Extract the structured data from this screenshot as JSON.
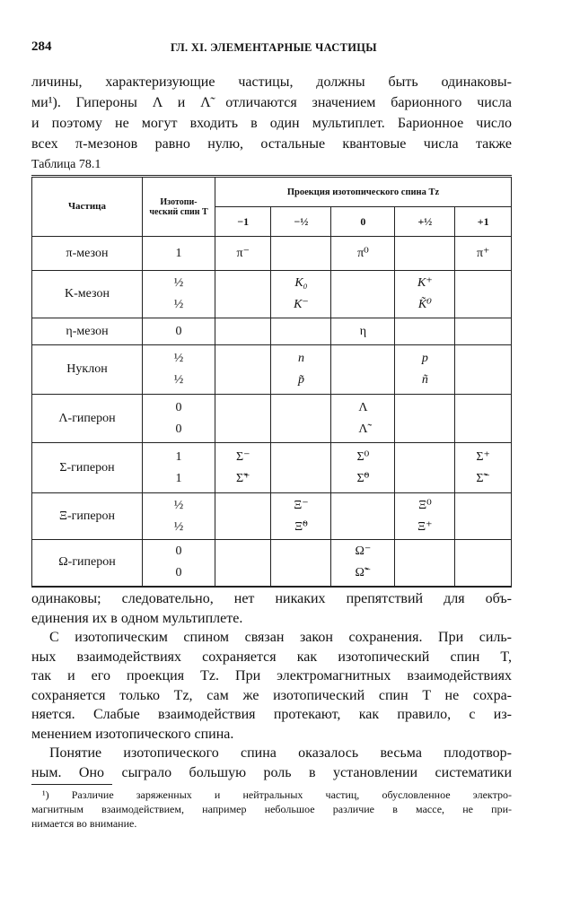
{
  "header": {
    "page_number": "284",
    "running_title": "ГЛ. XI. ЭЛЕМЕНТАРНЫЕ ЧАСТИЦЫ"
  },
  "intro_lines": [
    "личины, характеризующие частицы, должны быть одинаковы-",
    "ми¹). Гипероны Λ и Λ̃ отличаются значением барионного числа",
    "и поэтому не могут входить в один мультиплет. Барионное число",
    "всех π-мезонов равно нулю, остальные квантовые числа также"
  ],
  "table": {
    "caption": "Таблица 78.1",
    "col_particle": "Частица",
    "col_spin": "Изотопи- ческий спин T",
    "col_projection": "Проекция изотопического спина T_z",
    "projections": [
      "−1",
      "−½",
      "0",
      "+½",
      "+1"
    ],
    "rows": [
      {
        "name": "π-мезон",
        "T": [
          "1"
        ],
        "cells": [
          "π⁻",
          "",
          "π⁰",
          "",
          "π⁺"
        ]
      },
      {
        "name": "K-мезон",
        "T": [
          "½",
          "½"
        ],
        "cells": [
          "",
          "K₀\nK⁻",
          "",
          "K⁺\nK̃⁰",
          ""
        ]
      },
      {
        "name": "η-мезон",
        "T": [
          "0"
        ],
        "cells": [
          "",
          "",
          "η",
          "",
          ""
        ]
      },
      {
        "name": "Нуклон",
        "T": [
          "½",
          "½"
        ],
        "cells": [
          "",
          "n\np̃",
          "",
          "p\nñ",
          ""
        ]
      },
      {
        "name": "Λ-гиперон",
        "T": [
          "0",
          "0"
        ],
        "cells": [
          "",
          "",
          "Λ\nΛ̃",
          "",
          ""
        ]
      },
      {
        "name": "Σ-гиперон",
        "T": [
          "1",
          "1"
        ],
        "cells": [
          "Σ⁻\nΣ̃⁺",
          "",
          "Σ⁰\nΣ̃⁰",
          "",
          "Σ⁺\nΣ̃⁻"
        ]
      },
      {
        "name": "Ξ-гиперон",
        "T": [
          "½",
          "½"
        ],
        "cells": [
          "",
          "Ξ⁻\nΞ̃⁰",
          "",
          "Ξ⁰\nΞ⁺",
          ""
        ]
      },
      {
        "name": "Ω-гиперон",
        "T": [
          "0",
          "0"
        ],
        "cells": [
          "",
          "",
          "Ω⁻\nΩ̃⁻",
          "",
          ""
        ]
      }
    ]
  },
  "after_lines": [
    {
      "text": "одинаковы; следовательно, нет никаких препятствий для объ-",
      "indent": false,
      "last": false
    },
    {
      "text": "единения их в одном мультиплете.",
      "indent": false,
      "last": true
    },
    {
      "text": "С изотопическим спином связан закон сохранения. При силь-",
      "indent": true,
      "last": false
    },
    {
      "text": "ных взаимодействиях сохраняется как изотопический спин T,",
      "indent": false,
      "last": false
    },
    {
      "text": "так и его проекция T_z. При электромагнитных взаимодействиях",
      "indent": false,
      "last": false
    },
    {
      "text": "сохраняется только T_z, сам же изотопический спин T не сохра-",
      "indent": false,
      "last": false
    },
    {
      "text": "няется. Слабые взаимодействия протекают, как правило, с из-",
      "indent": false,
      "last": false
    },
    {
      "text": "менением изотопического спина.",
      "indent": false,
      "last": true
    },
    {
      "text": "Понятие изотопического спина оказалось весьма плодотвор-",
      "indent": true,
      "last": false
    },
    {
      "text": "ным. Оно сыграло большую роль в установлении систематики",
      "indent": false,
      "last": false
    }
  ],
  "footnote_lines": [
    "¹) Различие заряженных и нейтральных частиц, обусловленное электро-",
    "магнитным взаимодействием, например небольшое различие в массе, не при-",
    "нимается во внимание."
  ]
}
